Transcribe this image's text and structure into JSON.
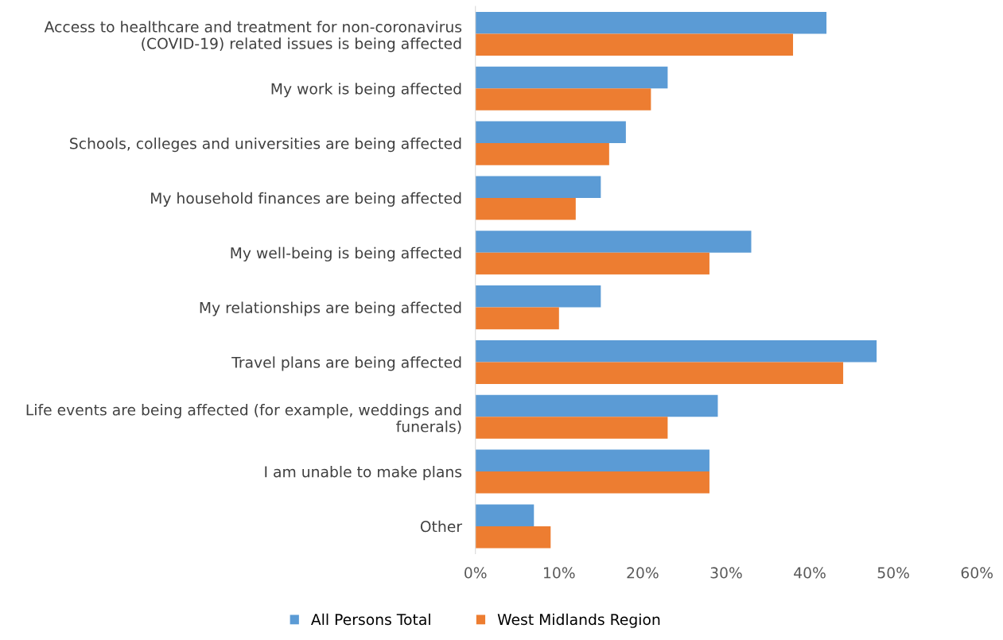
{
  "chart_data": {
    "type": "bar",
    "orientation": "horizontal",
    "categories": [
      "Access to healthcare and treatment for non-coronavirus\n(COVID-19) related issues is being affected",
      "My work is being affected",
      "Schools, colleges and universities are being affected",
      "My household finances are being affected",
      "My well-being is being affected",
      "My relationships are being affected",
      "Travel plans are being affected",
      "Life events are being affected (for example, weddings and\nfunerals)",
      "I am unable to make plans",
      "Other"
    ],
    "series": [
      {
        "name": "All Persons Total",
        "color": "#5b9bd5",
        "values": [
          42,
          23,
          18,
          15,
          33,
          15,
          48,
          29,
          28,
          7
        ]
      },
      {
        "name": "West Midlands Region",
        "color": "#ed7d31",
        "values": [
          38,
          21,
          16,
          12,
          28,
          10,
          44,
          23,
          28,
          9
        ]
      }
    ],
    "xlim": [
      0,
      60
    ],
    "xticks": [
      {
        "value": 0,
        "label": "0%"
      },
      {
        "value": 10,
        "label": "10%"
      },
      {
        "value": 20,
        "label": "20%"
      },
      {
        "value": 30,
        "label": "30%"
      },
      {
        "value": 40,
        "label": "40%"
      },
      {
        "value": 50,
        "label": "50%"
      },
      {
        "value": 60,
        "label": "60%"
      }
    ],
    "grid": false,
    "legend": "bottom"
  }
}
